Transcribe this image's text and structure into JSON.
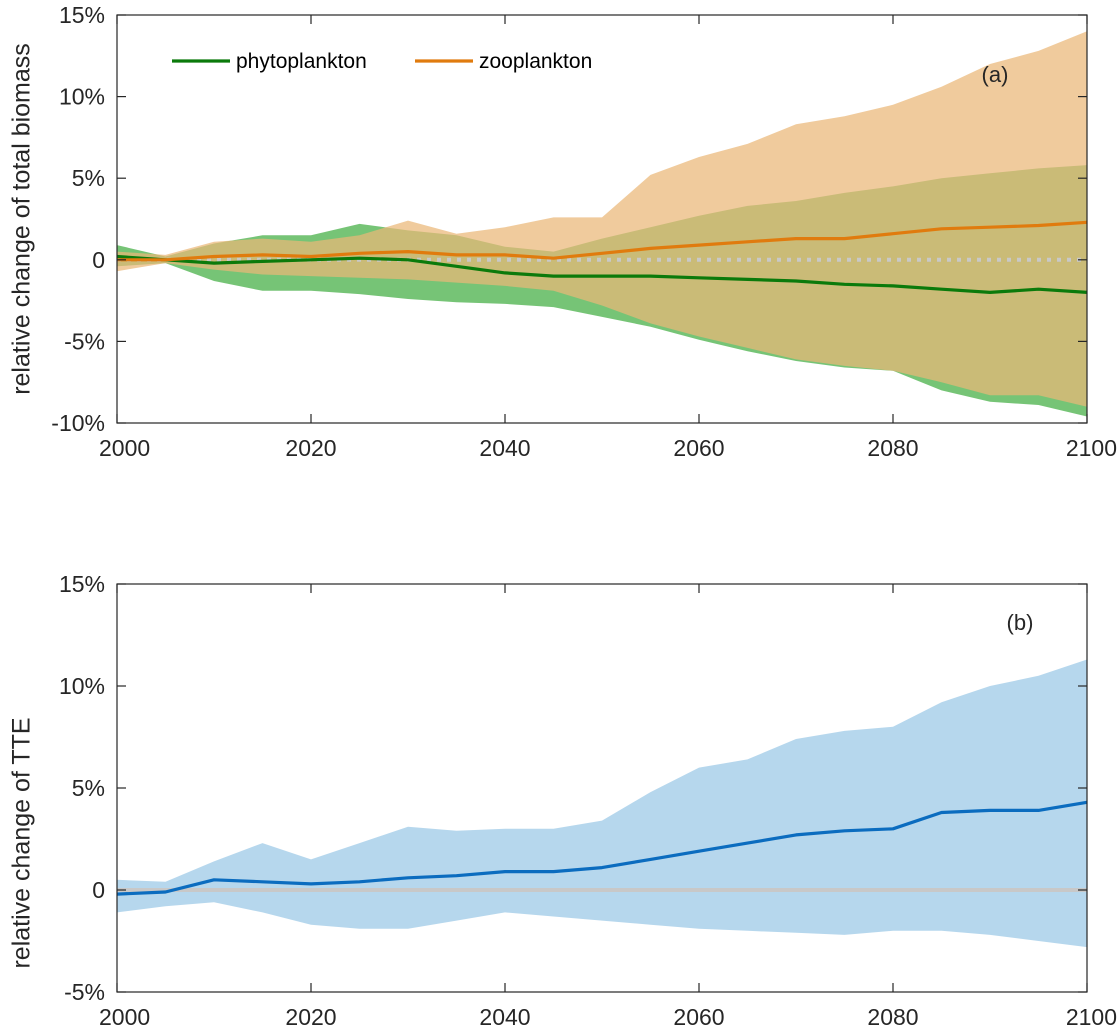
{
  "chart_data": [
    {
      "id": "panel-a",
      "type": "line",
      "panel_label": "(a)",
      "title": "",
      "xlabel": "",
      "ylabel": "relative change of total biomass",
      "xlim": [
        2000,
        2100
      ],
      "ylim": [
        -10,
        15
      ],
      "xticks": [
        2000,
        2020,
        2040,
        2060,
        2080,
        2100
      ],
      "xtick_labels": [
        "2000",
        "2020",
        "2040",
        "2060",
        "2080",
        "2100"
      ],
      "yticks": [
        -10,
        -5,
        0,
        5,
        10,
        15
      ],
      "ytick_labels": [
        "-10%",
        "-5%",
        "0",
        "5%",
        "10%",
        "15%"
      ],
      "grid": false,
      "legend_position": "top-left",
      "reference_line": {
        "y": 0,
        "style": "dotted",
        "color": "#c8c8c8"
      },
      "x": [
        2000,
        2005,
        2010,
        2015,
        2020,
        2025,
        2030,
        2035,
        2040,
        2045,
        2050,
        2055,
        2060,
        2065,
        2070,
        2075,
        2080,
        2085,
        2090,
        2095,
        2100
      ],
      "series": [
        {
          "name": "phytoplankton",
          "color": "#0b7a0b",
          "band_color": "#6abf6a",
          "values": [
            0.2,
            0,
            -0.2,
            -0.1,
            0,
            0.1,
            0,
            -0.4,
            -0.8,
            -1.0,
            -1.0,
            -1.0,
            -1.1,
            -1.2,
            -1.3,
            -1.5,
            -1.6,
            -1.8,
            -2.0,
            -1.8,
            -2.0
          ],
          "upper": [
            0.9,
            0.2,
            1.0,
            1.5,
            1.5,
            2.2,
            1.8,
            1.5,
            0.8,
            0.5,
            1.3,
            2.0,
            2.7,
            3.3,
            3.6,
            4.1,
            4.5,
            5.0,
            5.3,
            5.6,
            5.8
          ],
          "lower": [
            -0.4,
            -0.2,
            -1.3,
            -1.9,
            -1.9,
            -2.1,
            -2.4,
            -2.6,
            -2.7,
            -2.9,
            -3.5,
            -4.1,
            -4.9,
            -5.6,
            -6.2,
            -6.6,
            -6.8,
            -8.0,
            -8.7,
            -8.9,
            -9.6
          ]
        },
        {
          "name": "zooplankton",
          "color": "#e07b0e",
          "band_color": "#eab777",
          "values": [
            0,
            0,
            0.2,
            0.3,
            0.2,
            0.4,
            0.5,
            0.3,
            0.3,
            0.1,
            0.4,
            0.7,
            0.9,
            1.1,
            1.3,
            1.3,
            1.6,
            1.9,
            2.0,
            2.1,
            2.3
          ],
          "upper": [
            0.5,
            0.3,
            1.1,
            1.3,
            1.1,
            1.5,
            2.4,
            1.6,
            2.0,
            2.6,
            2.6,
            5.2,
            6.3,
            7.1,
            8.3,
            8.8,
            9.5,
            10.6,
            12.0,
            12.8,
            14.0
          ],
          "lower": [
            -0.7,
            -0.2,
            -0.6,
            -0.9,
            -1.0,
            -1.1,
            -1.2,
            -1.4,
            -1.6,
            -1.9,
            -2.8,
            -3.9,
            -4.7,
            -5.4,
            -6.1,
            -6.5,
            -6.8,
            -7.5,
            -8.3,
            -8.3,
            -9.0
          ]
        }
      ]
    },
    {
      "id": "panel-b",
      "type": "line",
      "panel_label": "(b)",
      "title": "",
      "xlabel": "",
      "ylabel": "relative change of TTE",
      "xlim": [
        2000,
        2100
      ],
      "ylim": [
        -5,
        15
      ],
      "xticks": [
        2000,
        2020,
        2040,
        2060,
        2080,
        2100
      ],
      "xtick_labels": [
        "2000",
        "2020",
        "2040",
        "2060",
        "2080",
        "2100"
      ],
      "yticks": [
        -5,
        0,
        5,
        10,
        15
      ],
      "ytick_labels": [
        "-5%",
        "0",
        "5%",
        "10%",
        "15%"
      ],
      "grid": false,
      "reference_line": {
        "y": 0,
        "style": "solid",
        "color": "#c8c8c8"
      },
      "x": [
        2000,
        2005,
        2010,
        2015,
        2020,
        2025,
        2030,
        2035,
        2040,
        2045,
        2050,
        2055,
        2060,
        2065,
        2070,
        2075,
        2080,
        2085,
        2090,
        2095,
        2100
      ],
      "series": [
        {
          "name": "TTE",
          "color": "#0b6cbf",
          "band_color": "#b0d4ec",
          "values": [
            -0.2,
            -0.1,
            0.5,
            0.4,
            0.3,
            0.4,
            0.6,
            0.7,
            0.9,
            0.9,
            1.1,
            1.5,
            1.9,
            2.3,
            2.7,
            2.9,
            3.0,
            3.8,
            3.9,
            3.9,
            4.3
          ],
          "upper": [
            0.5,
            0.4,
            1.4,
            2.3,
            1.5,
            2.3,
            3.1,
            2.9,
            3.0,
            3.0,
            3.4,
            4.8,
            6.0,
            6.4,
            7.4,
            7.8,
            8.0,
            9.2,
            10.0,
            10.5,
            11.3
          ],
          "lower": [
            -1.1,
            -0.8,
            -0.6,
            -1.1,
            -1.7,
            -1.9,
            -1.9,
            -1.5,
            -1.1,
            -1.3,
            -1.5,
            -1.7,
            -1.9,
            -2.0,
            -2.1,
            -2.2,
            -2.0,
            -2.0,
            -2.2,
            -2.5,
            -2.8
          ]
        }
      ]
    }
  ]
}
